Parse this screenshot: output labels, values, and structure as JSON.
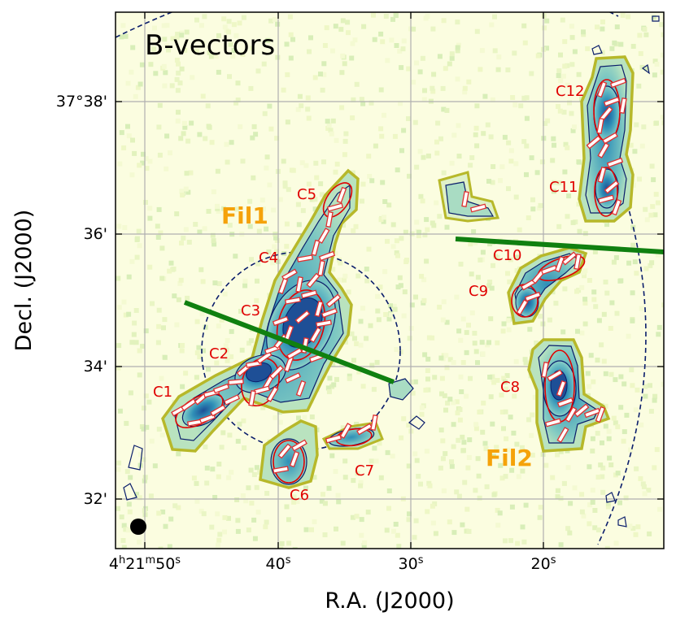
{
  "panel_title": "B-vectors",
  "axes": {
    "xlabel": "R.A. (J2000)",
    "ylabel": "Decl. (J2000)",
    "x_ticks": [
      {
        "id": "x-50",
        "main": "4",
        "sup1": "h",
        "mid": "21",
        "sup2": "m",
        "sec": "50",
        "sup3": "s"
      },
      {
        "id": "x-40",
        "sec": "40",
        "sup3": "s"
      },
      {
        "id": "x-30",
        "sec": "30",
        "sup3": "s"
      },
      {
        "id": "x-20",
        "sec": "20",
        "sup3": "s"
      }
    ],
    "y_ticks": [
      {
        "id": "y-38",
        "label": "37°38'"
      },
      {
        "id": "y-36",
        "label": "36'"
      },
      {
        "id": "y-34",
        "label": "34'"
      },
      {
        "id": "y-32",
        "label": "32'"
      }
    ]
  },
  "clumps": [
    {
      "id": "C1",
      "label": "C1"
    },
    {
      "id": "C2",
      "label": "C2"
    },
    {
      "id": "C3",
      "label": "C3"
    },
    {
      "id": "C4",
      "label": "C4"
    },
    {
      "id": "C5",
      "label": "C5"
    },
    {
      "id": "C6",
      "label": "C6"
    },
    {
      "id": "C7",
      "label": "C7"
    },
    {
      "id": "C8",
      "label": "C8"
    },
    {
      "id": "C9",
      "label": "C9"
    },
    {
      "id": "C10",
      "label": "C10"
    },
    {
      "id": "C11",
      "label": "C11"
    },
    {
      "id": "C12",
      "label": "C12"
    }
  ],
  "filaments": [
    {
      "id": "Fil1",
      "label": "Fil1"
    },
    {
      "id": "Fil2",
      "label": "Fil2"
    }
  ],
  "colors": {
    "clump_label": "#e00000",
    "filament_label": "#f5a20a",
    "outer_contour": "#b7b82a",
    "inner_contour": "#0a1d6b",
    "cut_line": "#108010",
    "vector_fill": "#ffffff",
    "vector_edge": "#e03030",
    "grid": "#b0b0b0"
  }
}
